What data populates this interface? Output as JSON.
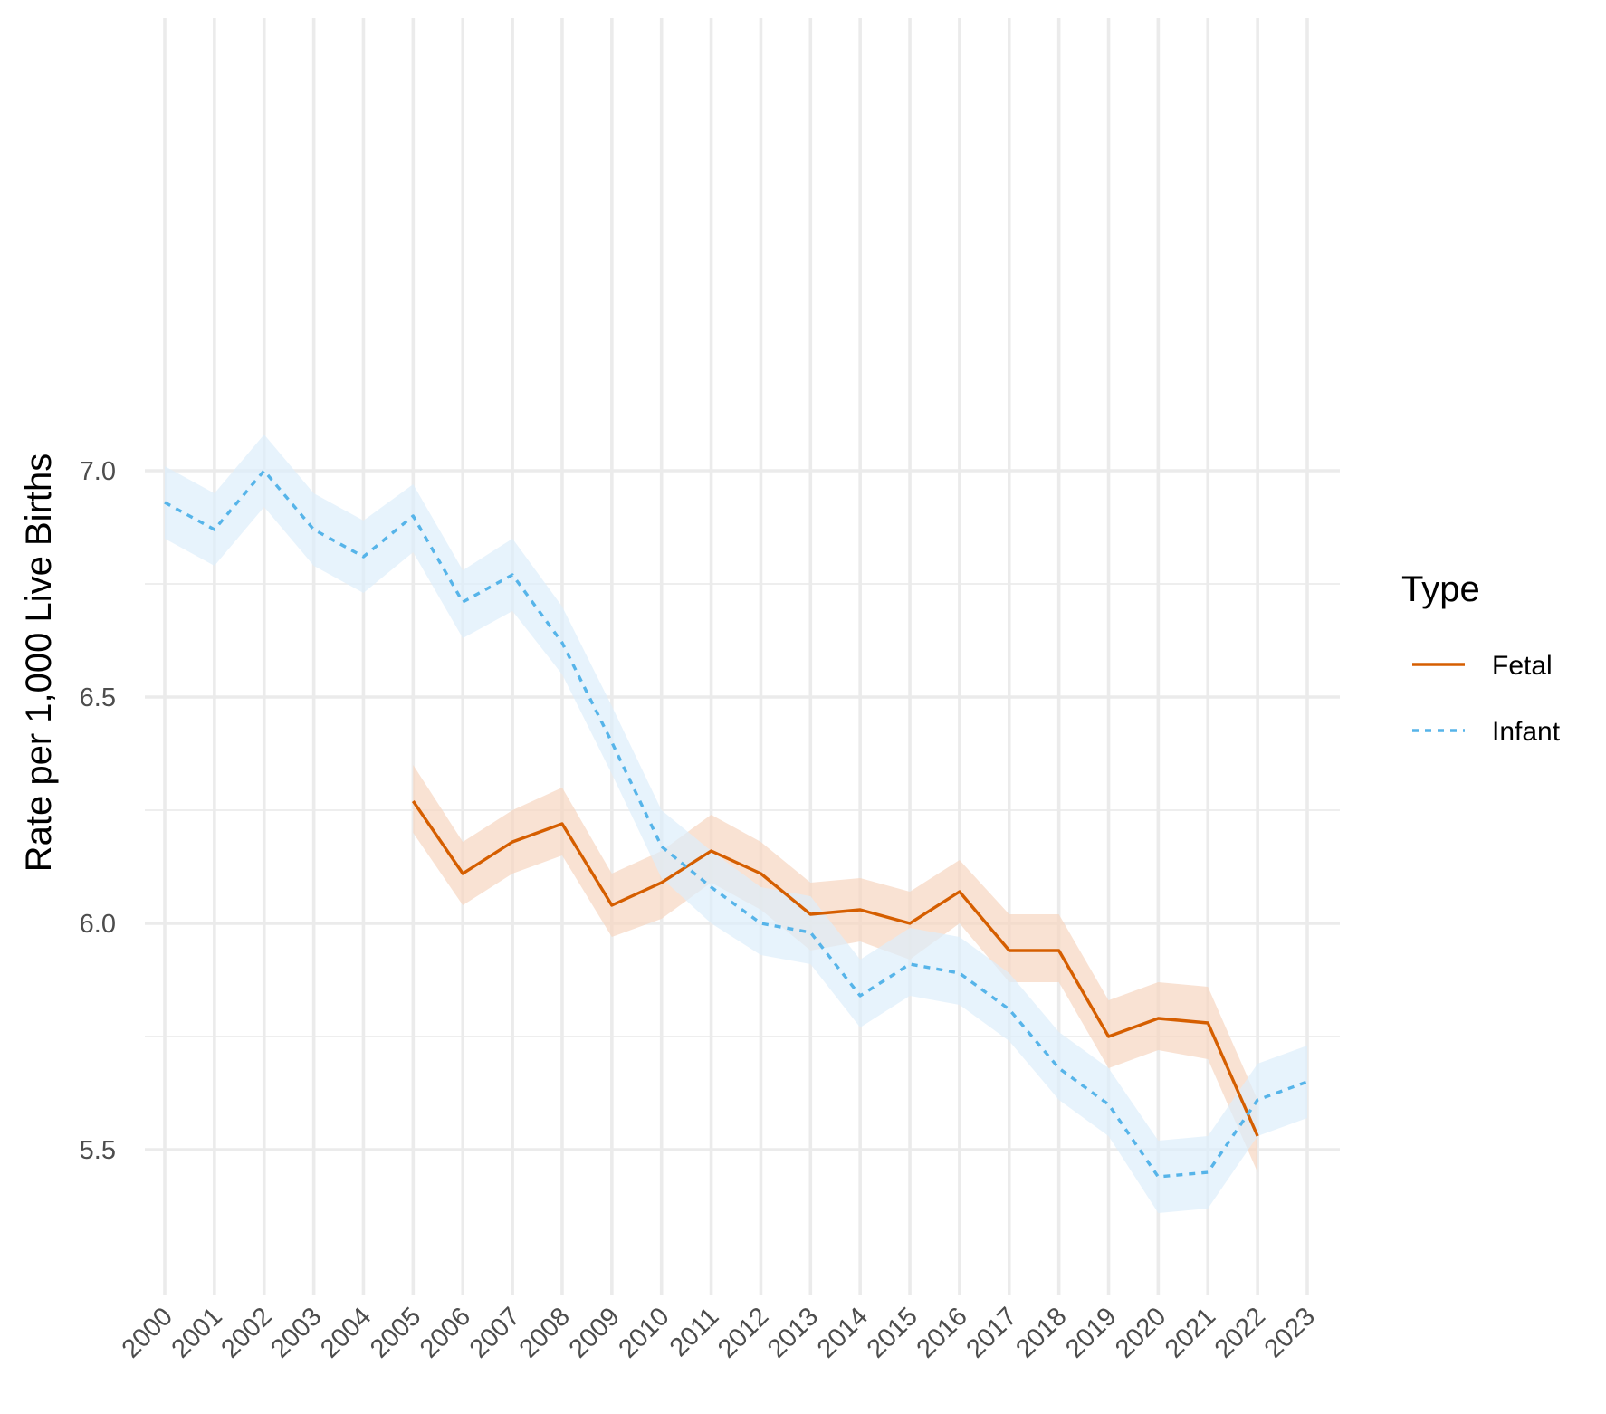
{
  "chart_data": {
    "type": "line",
    "title": "",
    "xlabel": "",
    "ylabel": "Rate per 1,000 Live Births",
    "x": [
      2000,
      2001,
      2002,
      2003,
      2004,
      2005,
      2006,
      2007,
      2008,
      2009,
      2010,
      2011,
      2012,
      2013,
      2014,
      2015,
      2016,
      2017,
      2018,
      2019,
      2020,
      2021,
      2022,
      2023
    ],
    "x_tick_labels": [
      "2000",
      "2001",
      "2002",
      "2003",
      "2004",
      "2005",
      "2006",
      "2007",
      "2008",
      "2009",
      "2010",
      "2011",
      "2012",
      "2013",
      "2014",
      "2015",
      "2016",
      "2017",
      "2018",
      "2019",
      "2020",
      "2021",
      "2022",
      "2023"
    ],
    "y_ticks": [
      5.5,
      6.0,
      6.5,
      7.0
    ],
    "y_tick_labels": [
      "5.5",
      "6.0",
      "6.5",
      "7.0"
    ],
    "ylim": [
      5.28,
      7.17
    ],
    "grid": true,
    "legend": {
      "title": "Type",
      "position": "right"
    },
    "series": [
      {
        "name": "Fetal",
        "color": "#D55E00",
        "band_color": "#F6D6C0",
        "line_style": "solid",
        "values": [
          null,
          null,
          null,
          null,
          null,
          6.27,
          6.11,
          6.18,
          6.22,
          6.04,
          6.09,
          6.16,
          6.11,
          6.02,
          6.03,
          6.0,
          6.07,
          5.94,
          5.94,
          5.75,
          5.79,
          5.78,
          5.53,
          null
        ],
        "lower": [
          null,
          null,
          null,
          null,
          null,
          6.2,
          6.04,
          6.11,
          6.15,
          5.97,
          6.01,
          6.09,
          6.03,
          5.94,
          5.96,
          5.92,
          6.0,
          5.87,
          5.87,
          5.68,
          5.72,
          5.7,
          5.45,
          null
        ],
        "upper": [
          null,
          null,
          null,
          null,
          null,
          6.35,
          6.18,
          6.25,
          6.3,
          6.11,
          6.16,
          6.24,
          6.18,
          6.09,
          6.1,
          6.07,
          6.14,
          6.02,
          6.02,
          5.83,
          5.87,
          5.86,
          5.61,
          null
        ]
      },
      {
        "name": "Infant",
        "color": "#56B4E9",
        "band_color": "#DDEEFB",
        "line_style": "dashed",
        "values": [
          6.93,
          6.87,
          7.0,
          6.87,
          6.81,
          6.9,
          6.71,
          6.77,
          6.62,
          6.4,
          6.17,
          6.08,
          6.0,
          5.98,
          5.84,
          5.91,
          5.89,
          5.81,
          5.68,
          5.6,
          5.44,
          5.45,
          5.61,
          5.65
        ],
        "lower": [
          6.85,
          6.79,
          6.92,
          6.79,
          6.73,
          6.82,
          6.63,
          6.69,
          6.55,
          6.33,
          6.1,
          6.0,
          5.93,
          5.91,
          5.77,
          5.84,
          5.82,
          5.74,
          5.61,
          5.53,
          5.36,
          5.37,
          5.53,
          5.57
        ],
        "upper": [
          7.01,
          6.95,
          7.08,
          6.95,
          6.89,
          6.97,
          6.78,
          6.85,
          6.7,
          6.48,
          6.25,
          6.16,
          6.08,
          6.06,
          5.92,
          5.99,
          5.97,
          5.89,
          5.76,
          5.68,
          5.52,
          5.53,
          5.69,
          5.73
        ]
      }
    ]
  }
}
